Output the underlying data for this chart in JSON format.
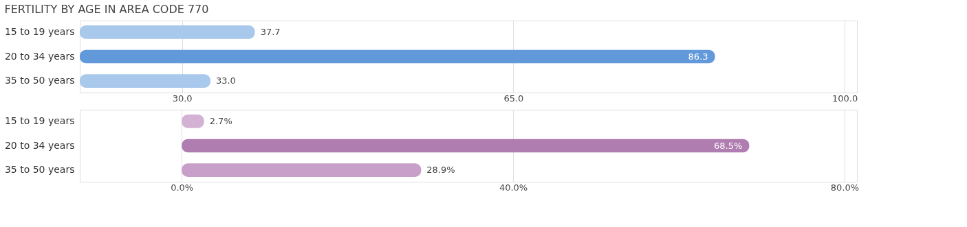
{
  "chart_data": [
    {
      "type": "bar",
      "orientation": "horizontal",
      "title": "FERTILITY BY AGE IN AREA CODE 770",
      "categories": [
        "15 to 19 years",
        "20 to 34 years",
        "35 to 50 years"
      ],
      "values": [
        37.7,
        86.3,
        33.0
      ],
      "colors": [
        "#a8c8ec",
        "#6199da",
        "#a8c8ec"
      ],
      "value_labels": [
        "37.7",
        "86.3",
        "33.0"
      ],
      "xlim": [
        19.2,
        101.3
      ],
      "xticks": [
        {
          "value": 30,
          "label": "30.0"
        },
        {
          "value": 65,
          "label": "65.0"
        },
        {
          "value": 100,
          "label": "100.0"
        }
      ],
      "grid": "x"
    },
    {
      "type": "bar",
      "orientation": "horizontal",
      "categories": [
        "15 to 19 years",
        "20 to 34 years",
        "35 to 50 years"
      ],
      "values": [
        2.7,
        68.5,
        28.9
      ],
      "colors": [
        "#d3b2d3",
        "#b07db1",
        "#c79fc8"
      ],
      "value_labels": [
        "2.7%",
        "68.5%",
        "28.9%"
      ],
      "xlim": [
        -12.3,
        81.5
      ],
      "xticks": [
        {
          "value": 0,
          "label": "0.0%"
        },
        {
          "value": 40,
          "label": "40.0%"
        },
        {
          "value": 80,
          "label": "80.0%"
        }
      ],
      "grid": "x"
    }
  ]
}
